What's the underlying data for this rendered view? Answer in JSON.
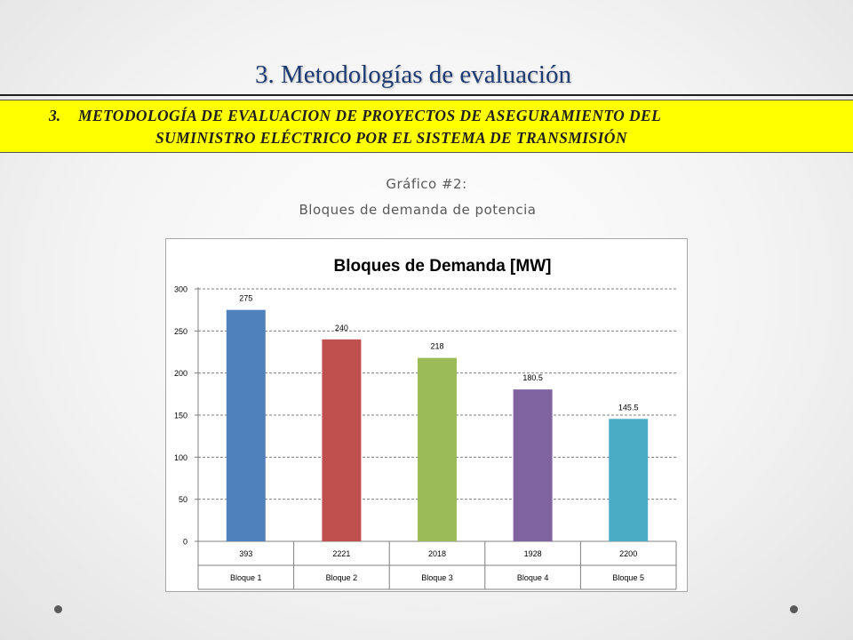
{
  "slide": {
    "title": "3. Metodologías de evaluación",
    "section_number": "3.",
    "section_line1": "METODOLOGÍA DE EVALUACION DE PROYECTOS DE ASEGURAMIENTO DEL",
    "section_line2": "SUMINISTRO ELÉCTRICO POR EL SISTEMA DE TRANSMISIÓN",
    "caption_line1": "Gráfico #2:",
    "caption_line2": "Bloques de demanda de potencia"
  },
  "chart_data": {
    "type": "bar",
    "title": "Bloques de Demanda [MW]",
    "xlabel": "",
    "ylabel": "",
    "ylim": [
      0,
      300
    ],
    "yticks": [
      0,
      50,
      100,
      150,
      200,
      250,
      300
    ],
    "grid": true,
    "legend": "none",
    "categories": [
      "Bloque 1",
      "Bloque 2",
      "Bloque 3",
      "Bloque 4",
      "Bloque 5"
    ],
    "category_sub_labels": [
      "393",
      "2221",
      "2018",
      "1928",
      "2200"
    ],
    "values": [
      275,
      240,
      218,
      180.5,
      145.5
    ],
    "data_labels": [
      "275",
      "240",
      "218",
      "180.5",
      "145.5"
    ],
    "colors": [
      "#4f81bd",
      "#c0504d",
      "#9bbb59",
      "#8064a2",
      "#4bacc6"
    ]
  }
}
